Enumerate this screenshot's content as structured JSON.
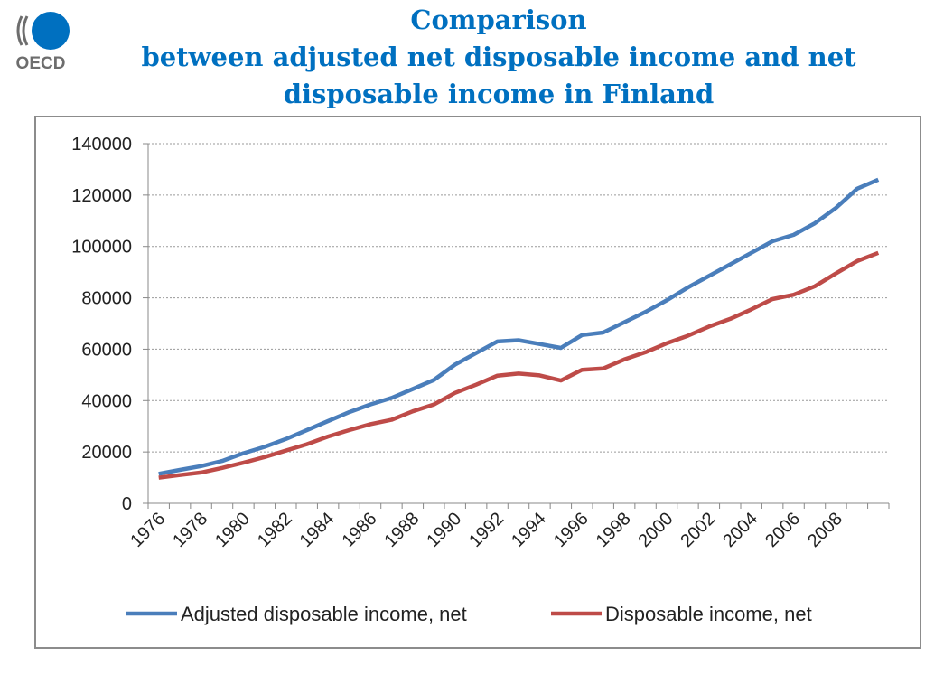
{
  "logo": {
    "text": "OECD",
    "icon": "oecd-logo-icon",
    "color": "#0070c0"
  },
  "title": {
    "line1": "Comparison",
    "line2": "between adjusted net disposable income and net",
    "line3": "disposable income in Finland",
    "color": "#0070c0"
  },
  "chart_data": {
    "type": "line",
    "x": [
      1976,
      1977,
      1978,
      1979,
      1980,
      1981,
      1982,
      1983,
      1984,
      1985,
      1986,
      1987,
      1988,
      1989,
      1990,
      1991,
      1992,
      1993,
      1994,
      1995,
      1996,
      1997,
      1998,
      1999,
      2000,
      2001,
      2002,
      2003,
      2004,
      2005,
      2006,
      2007,
      2008,
      2009,
      2010
    ],
    "xticks": [
      "1976",
      "1978",
      "1980",
      "1982",
      "1984",
      "1986",
      "1988",
      "1990",
      "1992",
      "1994",
      "1996",
      "1998",
      "2000",
      "2002",
      "2004",
      "2006",
      "2008"
    ],
    "yticks": [
      "0",
      "20000",
      "40000",
      "60000",
      "80000",
      "100000",
      "120000",
      "140000"
    ],
    "ylim": [
      0,
      140000
    ],
    "grid": true,
    "legend_position": "bottom",
    "series": [
      {
        "name": "Adjusted disposable income, net",
        "color": "#4a7ebb",
        "values": [
          11500,
          13000,
          14500,
          16500,
          19500,
          22000,
          25000,
          28500,
          32000,
          35500,
          38500,
          41000,
          44500,
          48000,
          54000,
          58500,
          63000,
          63500,
          62000,
          60500,
          65500,
          66500,
          70500,
          74500,
          79000,
          84000,
          88500,
          93000,
          97500,
          102000,
          104500,
          109000,
          115000,
          122500,
          126000
        ]
      },
      {
        "name": "Disposable income, net",
        "color": "#be4b48",
        "values": [
          10000,
          11000,
          12000,
          13800,
          15800,
          18000,
          20500,
          23000,
          26000,
          28500,
          30800,
          32500,
          35800,
          38500,
          43000,
          46200,
          49700,
          50500,
          49800,
          47800,
          52000,
          52500,
          56000,
          58800,
          62300,
          65200,
          68800,
          71800,
          75500,
          79500,
          81200,
          84500,
          89500,
          94300,
          97500
        ]
      }
    ]
  }
}
